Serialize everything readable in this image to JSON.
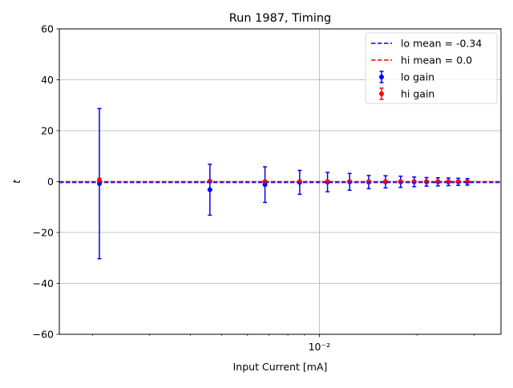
{
  "chart_data": {
    "type": "scatter",
    "title": "Run 1987, Timing",
    "xlabel": "Input Current [mA]",
    "ylabel": "t",
    "xscale": "log",
    "xlim": [
      0.00158,
      0.0363
    ],
    "ylim": [
      -60,
      60
    ],
    "yticks": [
      -60,
      -40,
      -20,
      0,
      20,
      40,
      60
    ],
    "xticks_major": [
      0.01
    ],
    "xtick_labels": [
      "10⁻²"
    ],
    "xticks_minor": [
      0.002,
      0.003,
      0.004,
      0.005,
      0.006,
      0.007,
      0.008,
      0.009,
      0.02,
      0.03
    ],
    "grid": true,
    "legend_position": "top-right",
    "colors": {
      "lo": "#0000ff",
      "hi": "#ff0000"
    },
    "series": [
      {
        "name": "lo gain",
        "kind": "errorbar",
        "color": "#0000ff",
        "x": [
          0.0021,
          0.0046,
          0.0068,
          0.0087,
          0.0106,
          0.0124,
          0.0142,
          0.016,
          0.0178,
          0.0196,
          0.0214,
          0.0232,
          0.025,
          0.0268,
          0.0286
        ],
        "y": [
          -0.8,
          -3.2,
          -1.2,
          -0.3,
          -0.2,
          -0.1,
          -0.2,
          -0.1,
          -0.1,
          -0.1,
          -0.1,
          -0.1,
          -0.1,
          -0.1,
          -0.1
        ],
        "yerr": [
          29.5,
          10.0,
          7.0,
          4.7,
          3.8,
          3.3,
          2.6,
          2.4,
          2.2,
          1.9,
          1.7,
          1.6,
          1.5,
          1.4,
          1.3
        ]
      },
      {
        "name": "hi gain",
        "kind": "errorbar",
        "color": "#ff0000",
        "x": [
          0.0021,
          0.0046,
          0.0068,
          0.0087,
          0.0106,
          0.0124,
          0.0142,
          0.016,
          0.0178,
          0.0196,
          0.0214,
          0.0232,
          0.025,
          0.0268,
          0.0286
        ],
        "y": [
          0.4,
          0.1,
          0.0,
          0.0,
          0.0,
          0.0,
          0.0,
          0.0,
          0.0,
          0.0,
          0.0,
          0.0,
          0.0,
          0.0,
          0.0
        ],
        "yerr": [
          0.9,
          0.5,
          0.4,
          0.3,
          0.3,
          0.3,
          0.3,
          0.3,
          0.3,
          0.3,
          0.3,
          0.3,
          0.3,
          0.3,
          0.3
        ]
      },
      {
        "name": "lo mean = -0.34",
        "kind": "hline",
        "color": "#0000ff",
        "y": -0.34,
        "style": "dashed"
      },
      {
        "name": "hi mean = 0.0",
        "kind": "hline",
        "color": "#ff0000",
        "y": 0.0,
        "style": "dashed"
      }
    ],
    "legend": [
      "lo mean = -0.34",
      "hi mean = 0.0",
      "lo gain",
      "hi gain"
    ]
  }
}
